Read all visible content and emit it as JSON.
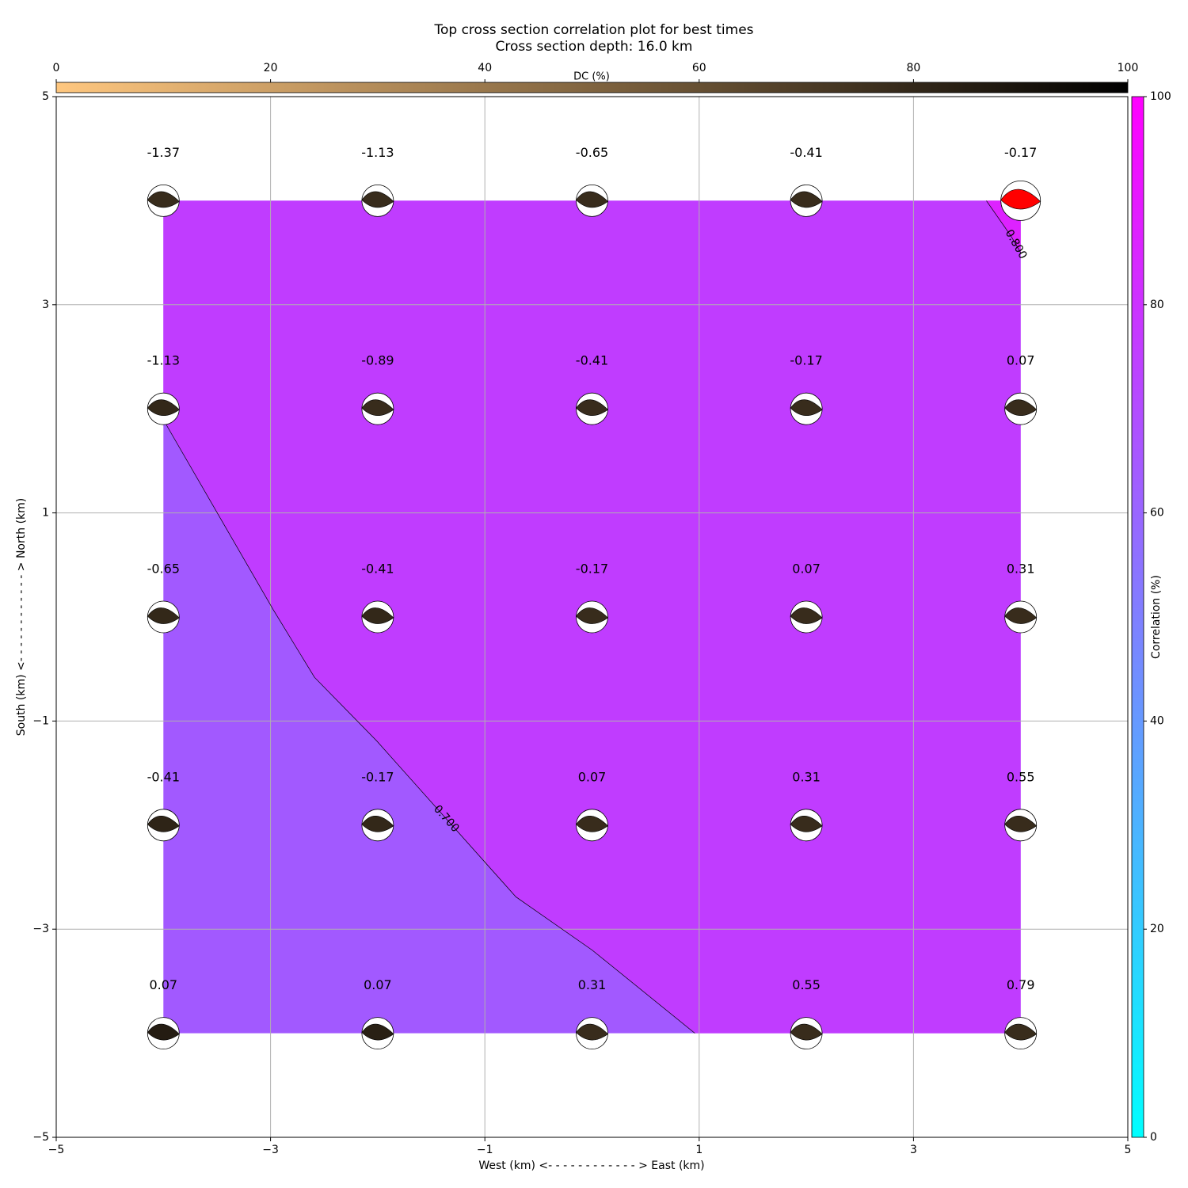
{
  "chart_data": {
    "type": "contour",
    "title": "Top cross section correlation plot for best times",
    "subtitle": "Cross section depth: 16.0 km",
    "xlabel": "West (km) <- - - - - - - - - - - - > East (km)",
    "ylabel": "South (km) <- - - - - - - - - - - - > North (km)",
    "xlim": [
      -5,
      5
    ],
    "ylim": [
      -5,
      5
    ],
    "xticks": [
      {
        "value": -5,
        "label": "−5"
      },
      {
        "value": -3,
        "label": "−3"
      },
      {
        "value": -1,
        "label": "−1"
      },
      1,
      3,
      5
    ],
    "yticks": [
      {
        "value": -5,
        "label": "−5"
      },
      {
        "value": -3,
        "label": "−3"
      },
      {
        "value": -1,
        "label": "−1"
      },
      1,
      3,
      5
    ],
    "grid": true,
    "points": {
      "x": [
        -4,
        -2,
        0,
        2,
        4,
        -4,
        -2,
        0,
        2,
        4,
        -4,
        -2,
        0,
        2,
        4,
        -4,
        -2,
        0,
        2,
        4,
        -4,
        -2,
        0,
        2,
        4
      ],
      "y": [
        4,
        4,
        4,
        4,
        4,
        2,
        2,
        2,
        2,
        2,
        0,
        0,
        0,
        0,
        0,
        -2,
        -2,
        -2,
        -2,
        -2,
        -4,
        -4,
        -4,
        -4,
        -4
      ],
      "values": [
        -1.37,
        -1.13,
        -0.65,
        -0.41,
        -0.17,
        -1.13,
        -0.89,
        -0.41,
        -0.17,
        0.07,
        -0.65,
        -0.41,
        -0.17,
        0.07,
        0.31,
        -0.41,
        -0.17,
        0.07,
        0.31,
        0.55,
        0.07,
        0.07,
        0.31,
        0.55,
        0.79
      ],
      "dc": [
        78,
        78,
        78,
        78,
        78,
        80,
        78,
        78,
        78,
        78,
        80,
        80,
        78,
        78,
        78,
        82,
        80,
        78,
        78,
        78,
        86,
        84,
        78,
        78,
        78
      ]
    },
    "best_index": 4,
    "best_color": "#ff0000",
    "contours": [
      {
        "level": {
          "value": 0.7,
          "label": "0.700"
        },
        "x": [
          -4,
          -2.975,
          -2.59,
          -2.01,
          -0.71,
          0.0,
          0.96
        ],
        "y": [
          1.895,
          0.07,
          -0.58,
          -1.19,
          -2.69,
          -3.2,
          -4.0
        ]
      },
      {
        "level": {
          "value": 0.8,
          "label": "0.800"
        },
        "x": [
          3.68,
          3.91,
          4.0
        ],
        "y": [
          4.0,
          3.66,
          3.5
        ]
      }
    ],
    "band_colors": [
      "#a259ff",
      "#c03cff",
      "#dd22ff"
    ],
    "colorbar": {
      "label": "Correlation (%)",
      "lim": [
        0,
        100
      ],
      "ticks": [
        0,
        20,
        40,
        60,
        80,
        100
      ],
      "colors": [
        "#00ffff",
        "#ff00ff"
      ]
    },
    "dc_colorbar": {
      "label": "DC (%)",
      "lim": [
        0,
        100
      ],
      "ticks": [
        0,
        20,
        40,
        60,
        80,
        100
      ],
      "colors": [
        "#ffc77f",
        "#000000"
      ]
    }
  }
}
